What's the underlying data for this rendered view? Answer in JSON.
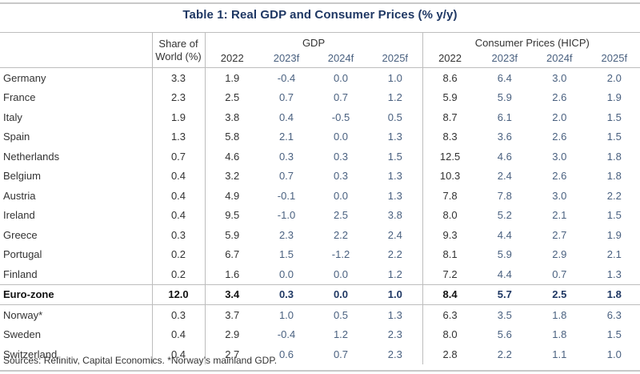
{
  "title": "Table 1: Real GDP and Consumer Prices (% y/y)",
  "header": {
    "share_label_line1": "Share of",
    "share_label_line2": "World (%)",
    "gdp_group": "GDP",
    "cpi_group": "Consumer Prices (HICP)",
    "years": [
      "2022",
      "2023f",
      "2024f",
      "2025f"
    ]
  },
  "rows": [
    {
      "country": "Germany",
      "share": "3.3",
      "gdp": [
        "1.9",
        "-0.4",
        "0.0",
        "1.0"
      ],
      "cpi": [
        "8.6",
        "6.4",
        "3.0",
        "2.0"
      ]
    },
    {
      "country": "France",
      "share": "2.3",
      "gdp": [
        "2.5",
        "0.7",
        "0.7",
        "1.2"
      ],
      "cpi": [
        "5.9",
        "5.9",
        "2.6",
        "1.9"
      ]
    },
    {
      "country": "Italy",
      "share": "1.9",
      "gdp": [
        "3.8",
        "0.4",
        "-0.5",
        "0.5"
      ],
      "cpi": [
        "8.7",
        "6.1",
        "2.0",
        "1.5"
      ]
    },
    {
      "country": "Spain",
      "share": "1.3",
      "gdp": [
        "5.8",
        "2.1",
        "0.0",
        "1.3"
      ],
      "cpi": [
        "8.3",
        "3.6",
        "2.6",
        "1.5"
      ]
    },
    {
      "country": "Netherlands",
      "share": "0.7",
      "gdp": [
        "4.6",
        "0.3",
        "0.3",
        "1.5"
      ],
      "cpi": [
        "12.5",
        "4.6",
        "3.0",
        "1.8"
      ]
    },
    {
      "country": "Belgium",
      "share": "0.4",
      "gdp": [
        "3.2",
        "0.7",
        "0.3",
        "1.3"
      ],
      "cpi": [
        "10.3",
        "2.4",
        "2.6",
        "1.8"
      ]
    },
    {
      "country": "Austria",
      "share": "0.4",
      "gdp": [
        "4.9",
        "-0.1",
        "0.0",
        "1.3"
      ],
      "cpi": [
        "7.8",
        "7.8",
        "3.0",
        "2.2"
      ]
    },
    {
      "country": "Ireland",
      "share": "0.4",
      "gdp": [
        "9.5",
        "-1.0",
        "2.5",
        "3.8"
      ],
      "cpi": [
        "8.0",
        "5.2",
        "2.1",
        "1.5"
      ]
    },
    {
      "country": "Greece",
      "share": "0.3",
      "gdp": [
        "5.9",
        "2.3",
        "2.2",
        "2.4"
      ],
      "cpi": [
        "9.3",
        "4.4",
        "2.7",
        "1.9"
      ]
    },
    {
      "country": "Portugal",
      "share": "0.2",
      "gdp": [
        "6.7",
        "1.5",
        "-1.2",
        "2.2"
      ],
      "cpi": [
        "8.1",
        "5.9",
        "2.9",
        "2.1"
      ]
    },
    {
      "country": "Finland",
      "share": "0.2",
      "gdp": [
        "1.6",
        "0.0",
        "0.0",
        "1.2"
      ],
      "cpi": [
        "7.2",
        "4.4",
        "0.7",
        "1.3"
      ]
    },
    {
      "country": "Euro-zone",
      "share": "12.0",
      "gdp": [
        "3.4",
        "0.3",
        "0.0",
        "1.0"
      ],
      "cpi": [
        "8.4",
        "5.7",
        "2.5",
        "1.8"
      ],
      "aggregate": true
    },
    {
      "country": "Norway*",
      "share": "0.3",
      "gdp": [
        "3.7",
        "1.0",
        "0.5",
        "1.3"
      ],
      "cpi": [
        "6.3",
        "3.5",
        "1.8",
        "6.3"
      ]
    },
    {
      "country": "Sweden",
      "share": "0.4",
      "gdp": [
        "2.9",
        "-0.4",
        "1.2",
        "2.3"
      ],
      "cpi": [
        "8.0",
        "5.6",
        "1.8",
        "1.5"
      ]
    },
    {
      "country": "Switzerland",
      "share": "0.4",
      "gdp": [
        "2.7",
        "0.6",
        "0.7",
        "2.3"
      ],
      "cpi": [
        "2.8",
        "2.2",
        "1.1",
        "1.0"
      ]
    }
  ],
  "footer": "Sources: Refinitiv, Capital Economics. *Norway’s mainland GDP.",
  "colors": {
    "title": "#1f3864",
    "forecast_text": "#4a6180",
    "rule": "#bdbdbd"
  }
}
